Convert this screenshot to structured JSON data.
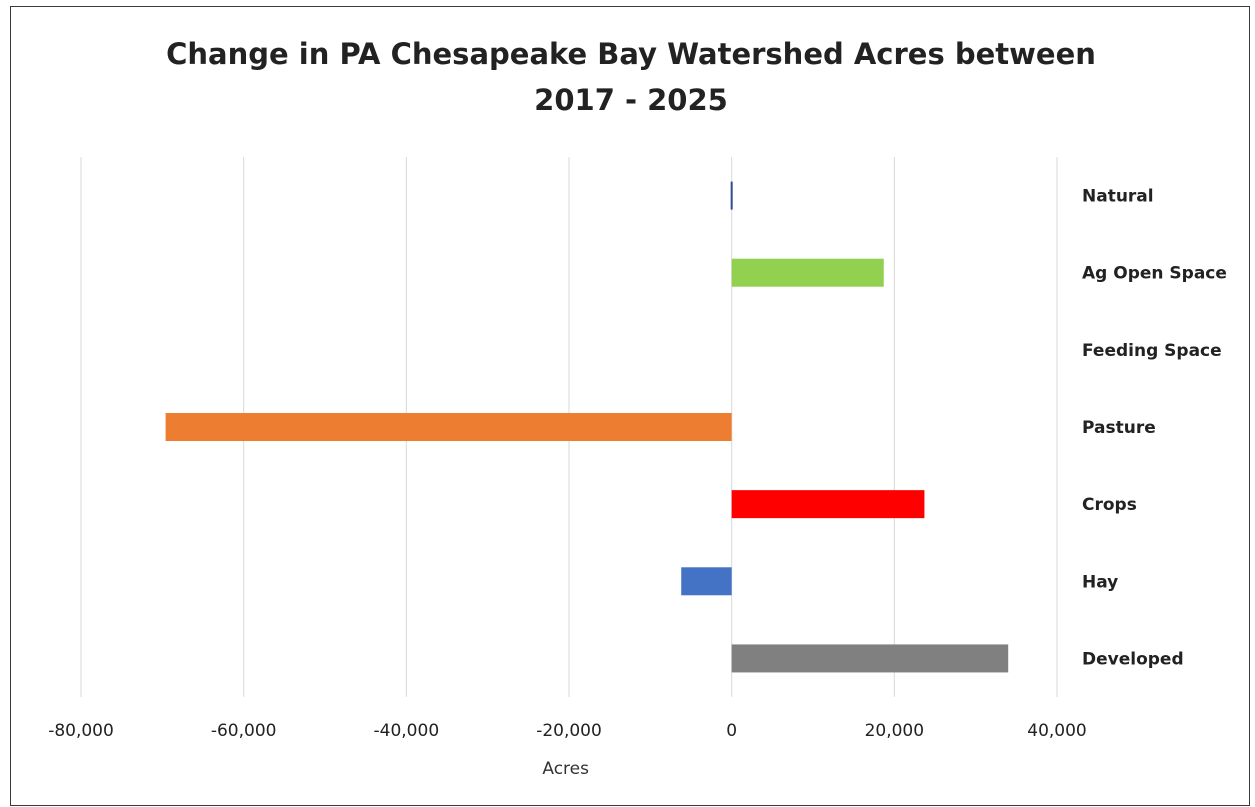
{
  "chart_data": {
    "type": "bar",
    "orientation": "horizontal",
    "title": "Change in PA Chesapeake  Bay Watershed  Acres between 2017 - 2025",
    "title_lines": [
      "Change in PA Chesapeake  Bay Watershed  Acres between",
      "2017 - 2025"
    ],
    "xlabel": "Acres",
    "ylabel": "",
    "xlim": [
      -80000,
      40000
    ],
    "x_ticks": [
      -80000,
      -60000,
      -40000,
      -20000,
      0,
      20000,
      40000
    ],
    "x_tick_labels": [
      "-80,000",
      "-60,000",
      "-40,000",
      "-20,000",
      "0",
      "20,000",
      "40,000"
    ],
    "grid": "vertical",
    "category_label_position": "right",
    "categories": [
      "Natural",
      "Ag Open Space",
      "Feeding Space",
      "Pasture",
      "Crops",
      "Hay",
      "Developed"
    ],
    "values": [
      -200,
      18700,
      0,
      -69600,
      23700,
      -6200,
      34000
    ],
    "colors": [
      "#2f4b8f",
      "#92d050",
      "#ffffff",
      "#ed7d31",
      "#ff0000",
      "#4472c4",
      "#808080"
    ]
  }
}
